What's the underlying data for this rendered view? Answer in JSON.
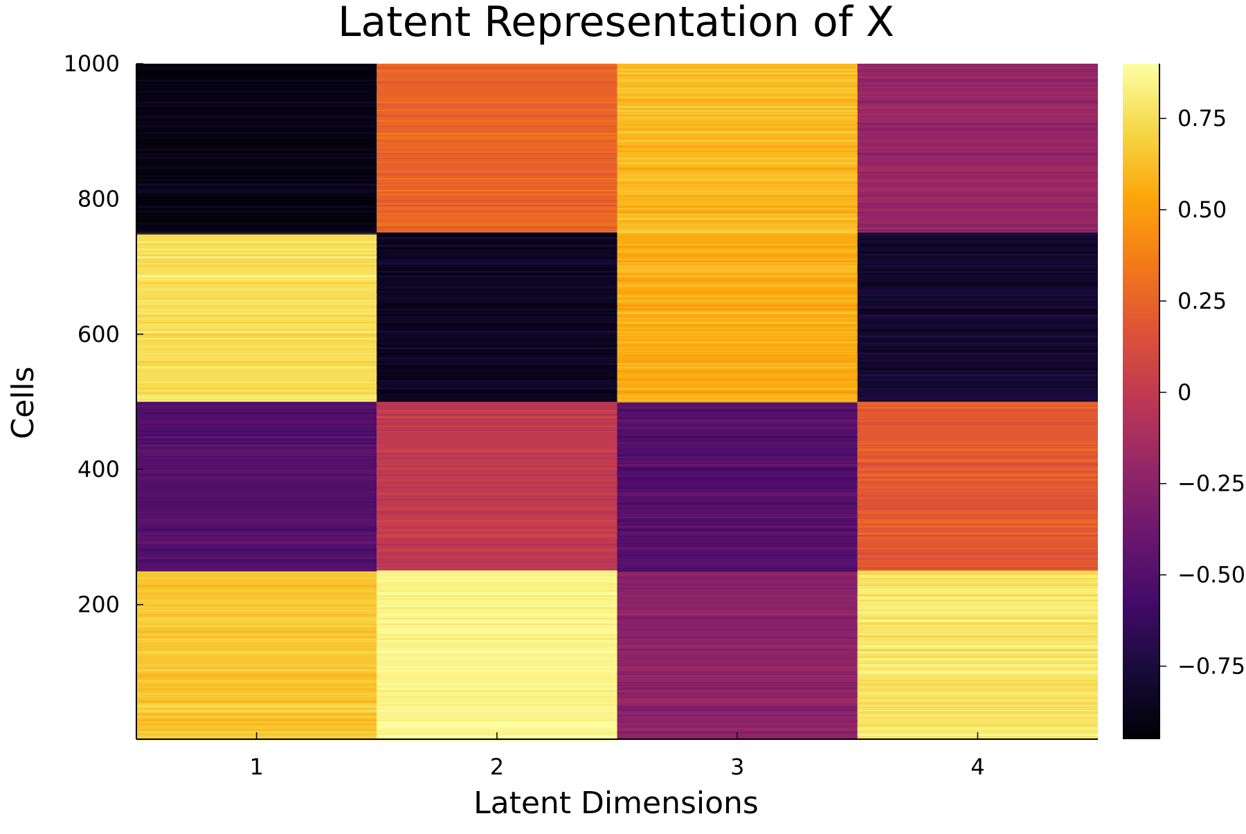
{
  "chart_data": {
    "type": "heatmap",
    "title": "Latent Representation of X",
    "xlabel": "Latent Dimensions",
    "ylabel": "Cells",
    "x_categories": [
      "1",
      "2",
      "3",
      "4"
    ],
    "xlim": [
      0.5,
      4.5
    ],
    "ylim": [
      1,
      1000
    ],
    "y_ticks": [
      200,
      400,
      600,
      800,
      1000
    ],
    "colormap": "inferno",
    "colorbar": {
      "range": [
        -0.95,
        0.9
      ],
      "ticks": [
        -0.75,
        -0.5,
        -0.25,
        0,
        0.25,
        0.5,
        0.75
      ],
      "tick_labels": [
        "−0.75",
        "−0.50",
        "−0.25",
        "0",
        "0.25",
        "0.50",
        "0.75"
      ]
    },
    "row_blocks": [
      {
        "cells": [
          1,
          250
        ],
        "values": [
          0.65,
          0.85,
          -0.25,
          0.78
        ]
      },
      {
        "cells": [
          251,
          500
        ],
        "values": [
          -0.5,
          0.0,
          -0.5,
          0.2
        ]
      },
      {
        "cells": [
          501,
          750
        ],
        "values": [
          0.75,
          -0.85,
          0.55,
          -0.8
        ]
      },
      {
        "cells": [
          751,
          1000
        ],
        "values": [
          -0.9,
          0.25,
          0.6,
          -0.2
        ]
      }
    ],
    "grid": false,
    "legend": "colorbar-right"
  }
}
